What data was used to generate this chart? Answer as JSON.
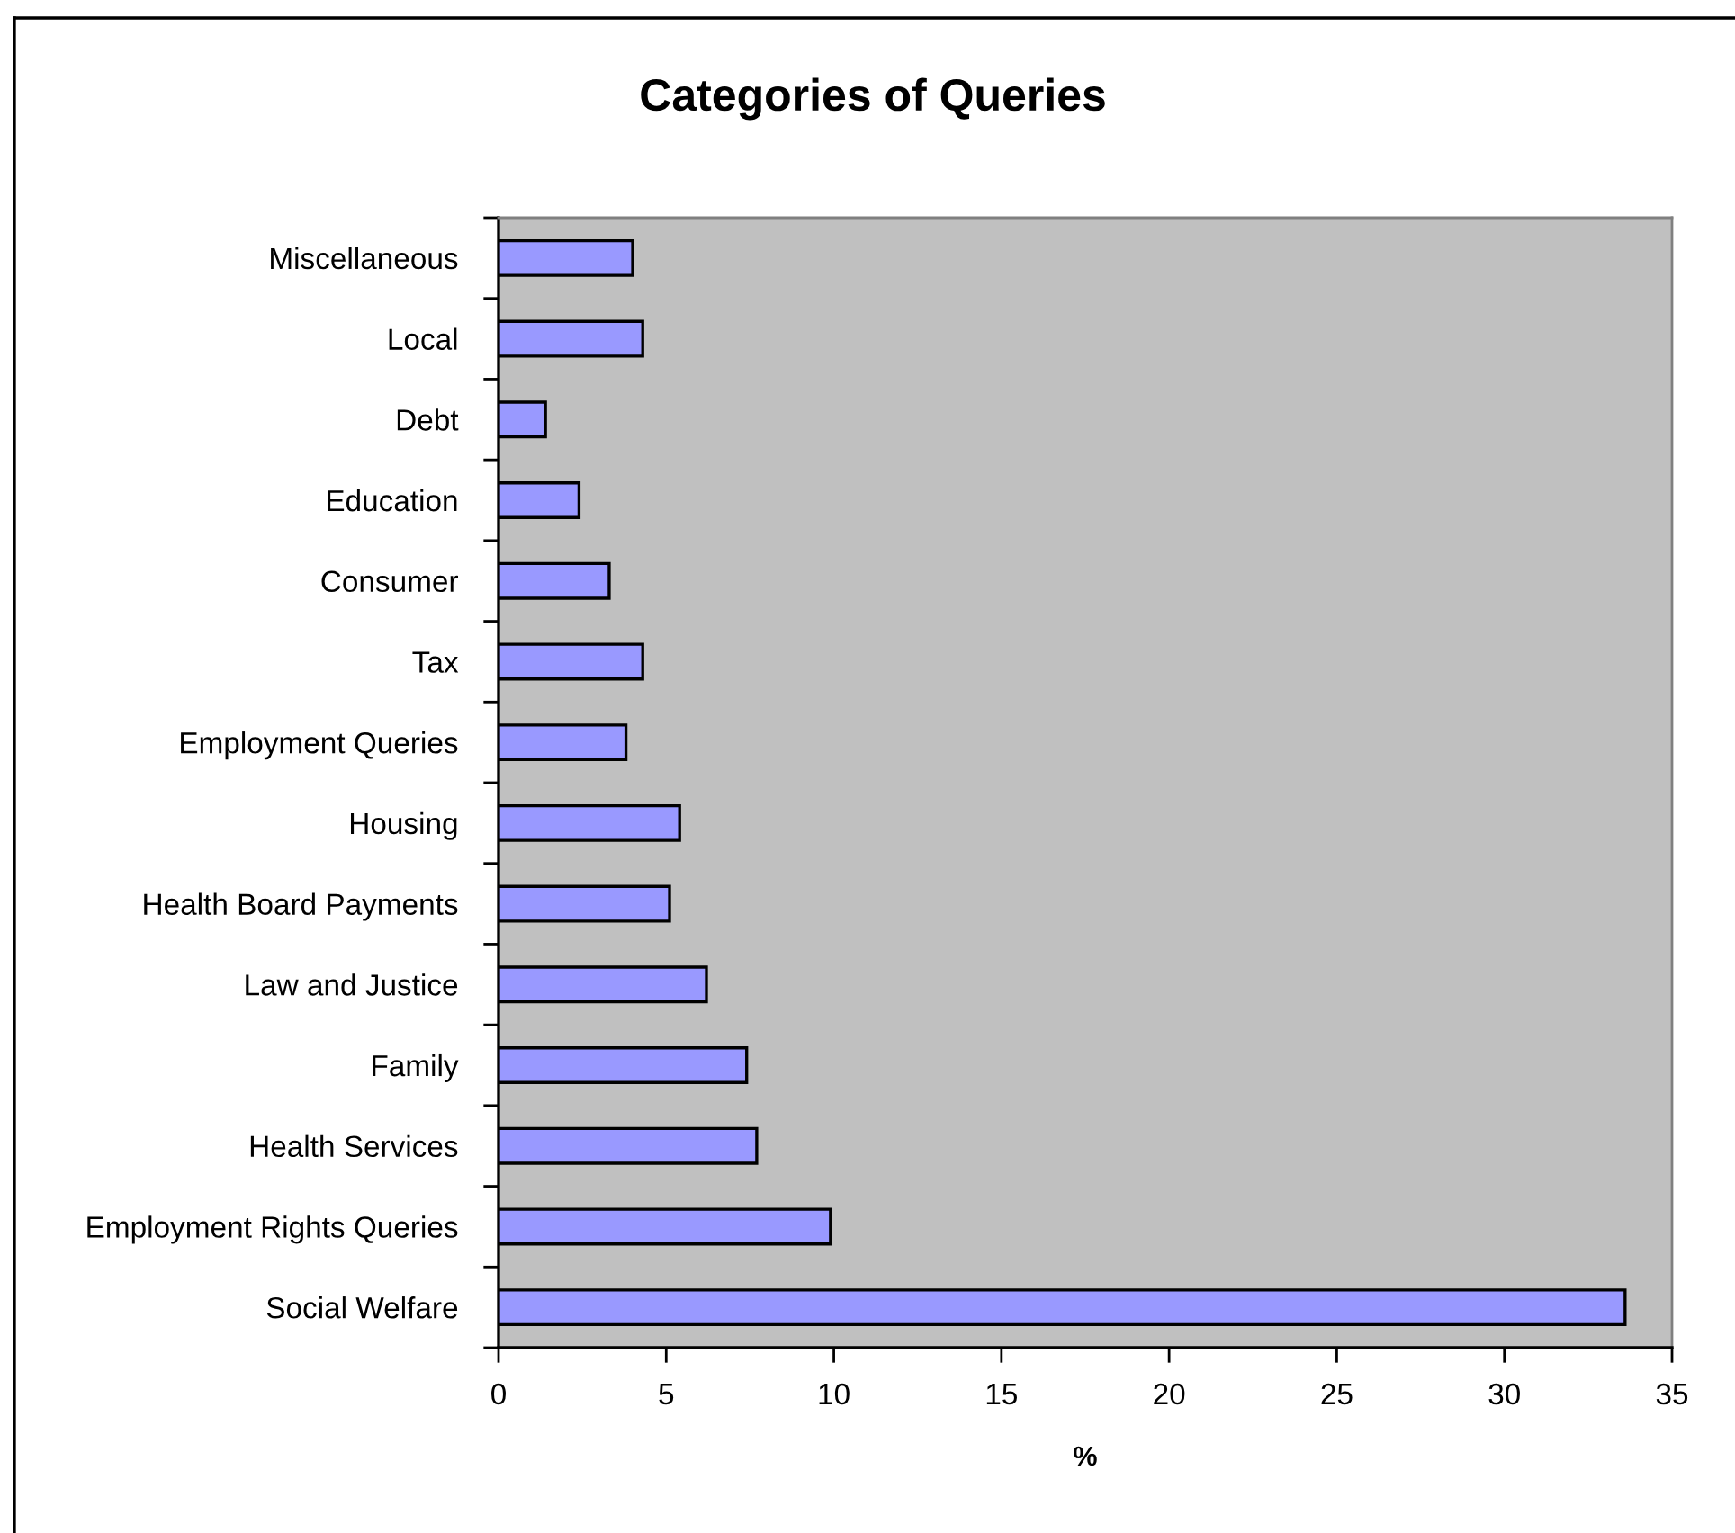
{
  "chart_data": {
    "type": "bar",
    "orientation": "horizontal",
    "title": "Categories of Queries",
    "xlabel": "%",
    "categories": [
      "Miscellaneous",
      "Local",
      "Debt",
      "Education",
      "Consumer",
      "Tax",
      "Employment Queries",
      "Housing",
      "Health Board Payments",
      "Law and Justice",
      "Family",
      "Health Services",
      "Employment Rights Queries",
      "Social Welfare"
    ],
    "values": [
      4.0,
      4.3,
      1.4,
      2.4,
      3.3,
      4.3,
      3.8,
      5.4,
      5.1,
      6.2,
      7.4,
      7.7,
      9.9,
      33.6
    ],
    "color": "#9999ff",
    "xlim": [
      0,
      35
    ],
    "xticks": [
      0,
      5,
      10,
      15,
      20,
      25,
      30,
      35
    ]
  }
}
